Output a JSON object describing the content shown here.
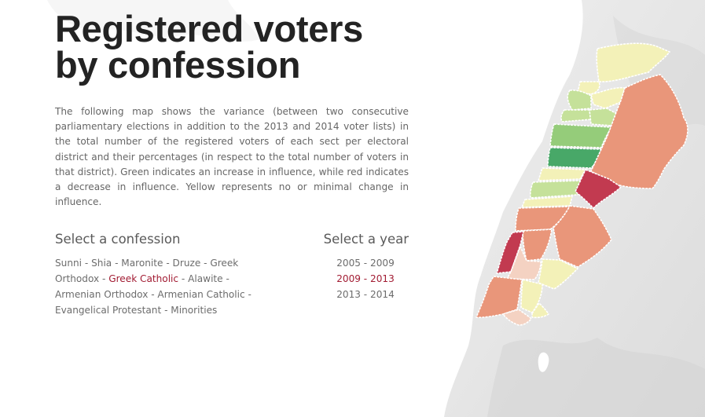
{
  "header": {
    "title_line1": "Registered voters",
    "title_line2": "by confession"
  },
  "description": "The following map shows the variance (between two consecutive parliamentary elections in addition to the 2013 and 2014 voter lists) in the total number of the registered voters of each sect per electoral district and their percentages (in respect to the total number of voters in that district). Green indicates an increase in influence, while red indicates a decrease in influence. Yellow represents no or minimal change in influence.",
  "confession_selector": {
    "heading": "Select a confession",
    "separator": " - ",
    "options": [
      {
        "label": "Sunni",
        "active": false
      },
      {
        "label": "Shia",
        "active": false
      },
      {
        "label": "Maronite",
        "active": false
      },
      {
        "label": "Druze",
        "active": false
      },
      {
        "label": "Greek Orthodox",
        "active": false
      },
      {
        "label": "Greek Catholic",
        "active": true
      },
      {
        "label": "Alawite",
        "active": false
      },
      {
        "label": "Armenian Orthodox",
        "active": false
      },
      {
        "label": "Armenian Catholic",
        "active": false
      },
      {
        "label": "Evangelical Protestant",
        "active": false
      },
      {
        "label": "Minorities",
        "active": false
      }
    ]
  },
  "year_selector": {
    "heading": "Select a year",
    "options": [
      {
        "label": "2005 - 2009",
        "active": false
      },
      {
        "label": "2009 - 2013",
        "active": true
      },
      {
        "label": "2013 - 2014",
        "active": false
      }
    ]
  },
  "legend_colors": {
    "increase_strong": "#48a868",
    "increase": "#95cc7a",
    "increase_slight": "#c5e19a",
    "no_change": "#f3f1b8",
    "decrease_slight": "#f4d2c2",
    "decrease": "#e9967a",
    "decrease_strong": "#c23a50"
  }
}
